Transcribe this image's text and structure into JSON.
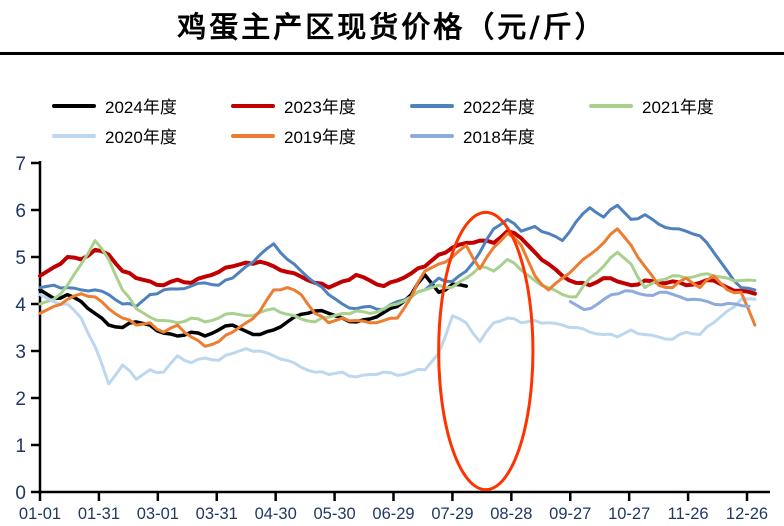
{
  "title": "鸡蛋主产区现货价格（元/斤）",
  "legend": [
    {
      "label": "2024年度",
      "color": "#000000"
    },
    {
      "label": "2023年度",
      "color": "#C00000"
    },
    {
      "label": "2022年度",
      "color": "#4E81BD"
    },
    {
      "label": "2021年度",
      "color": "#A9D18E"
    },
    {
      "label": "2020年度",
      "color": "#BDD7EE"
    },
    {
      "label": "2019年度",
      "color": "#ED7D31"
    },
    {
      "label": "2018年度",
      "color": "#8FAADC"
    }
  ],
  "axis_label_color": "#1F3864",
  "chart_data": {
    "type": "line",
    "title": "鸡蛋主产区现货价格（元/斤）",
    "xlabel": "",
    "ylabel": "",
    "ylim": [
      0,
      7
    ],
    "ytick_interval": 1,
    "grid": false,
    "legend_position": "top",
    "y_ticks": [
      {
        "value": 7,
        "label": "7"
      },
      {
        "value": 6,
        "label": "6"
      },
      {
        "value": 5,
        "label": "5"
      },
      {
        "value": 4,
        "label": "4"
      },
      {
        "value": 3,
        "label": "3"
      },
      {
        "value": 2,
        "label": "2"
      },
      {
        "value": 1,
        "label": "1"
      },
      {
        "value": 0,
        "label": "0"
      }
    ],
    "x_ticks": [
      {
        "day": 0,
        "label": "01-01"
      },
      {
        "day": 30,
        "label": "01-31"
      },
      {
        "day": 60,
        "label": "03-01"
      },
      {
        "day": 90,
        "label": "03-31"
      },
      {
        "day": 120,
        "label": "04-30"
      },
      {
        "day": 150,
        "label": "05-30"
      },
      {
        "day": 180,
        "label": "06-29"
      },
      {
        "day": 210,
        "label": "07-29"
      },
      {
        "day": 240,
        "label": "08-28"
      },
      {
        "day": 270,
        "label": "09-27"
      },
      {
        "day": 300,
        "label": "10-27"
      },
      {
        "day": 330,
        "label": "11-26"
      },
      {
        "day": 360,
        "label": "12-26"
      }
    ],
    "series": [
      {
        "name": "2024年度",
        "color": "#000000",
        "start_day": 0,
        "step_days": 7,
        "values": [
          4.3,
          4.12,
          4.2,
          4.05,
          3.8,
          3.55,
          3.5,
          3.62,
          3.55,
          3.38,
          3.32,
          3.4,
          3.32,
          3.45,
          3.55,
          3.42,
          3.35,
          3.45,
          3.62,
          3.78,
          3.85,
          3.8,
          3.7,
          3.62,
          3.68,
          3.82,
          3.95,
          4.2,
          4.62,
          4.25,
          4.42,
          4.38
        ]
      },
      {
        "name": "2023年度",
        "color": "#C00000",
        "start_day": 0,
        "step_days": 7,
        "values": [
          4.6,
          4.78,
          5.0,
          4.95,
          5.15,
          5.05,
          4.7,
          4.55,
          4.48,
          4.4,
          4.52,
          4.45,
          4.58,
          4.68,
          4.8,
          4.88,
          4.9,
          4.8,
          4.68,
          4.58,
          4.45,
          4.35,
          4.48,
          4.62,
          4.5,
          4.38,
          4.5,
          4.65,
          4.8,
          5.05,
          5.2,
          5.3,
          5.35,
          5.3,
          5.55,
          5.4,
          5.1,
          4.85,
          4.6,
          4.45,
          4.4,
          4.55,
          4.48,
          4.4,
          4.5,
          4.45,
          4.48,
          4.4,
          4.45,
          4.5,
          4.35,
          4.28,
          4.22
        ]
      },
      {
        "name": "2022年度",
        "color": "#4E81BD",
        "start_day": 0,
        "step_days": 7,
        "values": [
          4.35,
          4.4,
          4.35,
          4.3,
          4.3,
          4.2,
          4.0,
          3.95,
          4.2,
          4.3,
          4.32,
          4.38,
          4.45,
          4.4,
          4.55,
          4.8,
          5.05,
          5.28,
          4.95,
          4.7,
          4.45,
          4.2,
          4.0,
          3.9,
          3.95,
          3.88,
          4.05,
          4.15,
          4.3,
          4.55,
          4.48,
          4.7,
          5.1,
          5.6,
          5.8,
          5.55,
          5.65,
          5.5,
          5.35,
          5.75,
          6.05,
          5.85,
          6.1,
          5.8,
          5.9,
          5.7,
          5.6,
          5.55,
          5.45,
          5.1,
          4.7,
          4.35,
          4.3
        ]
      },
      {
        "name": "2021年度",
        "color": "#A9D18E",
        "start_day": 0,
        "step_days": 7,
        "values": [
          4.0,
          4.1,
          4.4,
          4.85,
          5.35,
          4.95,
          4.3,
          3.9,
          3.72,
          3.65,
          3.6,
          3.7,
          3.62,
          3.7,
          3.8,
          3.75,
          3.82,
          3.9,
          3.78,
          3.68,
          3.62,
          3.72,
          3.8,
          3.85,
          3.8,
          3.9,
          4.0,
          4.15,
          4.3,
          4.4,
          4.36,
          4.55,
          4.8,
          4.7,
          4.95,
          4.72,
          4.5,
          4.35,
          4.2,
          4.15,
          4.55,
          4.8,
          5.1,
          4.85,
          4.35,
          4.5,
          4.6,
          4.55,
          4.62,
          4.6,
          4.55,
          4.5,
          4.5
        ]
      },
      {
        "name": "2020年度",
        "color": "#BDD7EE",
        "start_day": 0,
        "step_days": 7,
        "values": [
          4.2,
          4.05,
          4.0,
          3.7,
          3.1,
          2.3,
          2.7,
          2.4,
          2.6,
          2.55,
          2.9,
          2.75,
          2.85,
          2.8,
          2.95,
          3.05,
          3.0,
          2.9,
          2.8,
          2.65,
          2.55,
          2.5,
          2.55,
          2.45,
          2.5,
          2.55,
          2.48,
          2.55,
          2.6,
          2.95,
          3.75,
          3.6,
          3.2,
          3.6,
          3.7,
          3.6,
          3.65,
          3.6,
          3.55,
          3.5,
          3.4,
          3.35,
          3.3,
          3.45,
          3.35,
          3.3,
          3.25,
          3.4,
          3.35,
          3.6,
          3.85,
          4.1,
          4.1
        ]
      },
      {
        "name": "2019年度",
        "color": "#ED7D31",
        "start_day": 0,
        "step_days": 7,
        "values": [
          3.8,
          3.95,
          4.1,
          4.22,
          4.15,
          3.9,
          3.7,
          3.55,
          3.6,
          3.4,
          3.55,
          3.3,
          3.1,
          3.2,
          3.4,
          3.6,
          3.85,
          4.3,
          4.35,
          4.2,
          3.8,
          3.6,
          3.7,
          3.65,
          3.6,
          3.65,
          3.7,
          4.15,
          4.7,
          4.85,
          5.0,
          5.25,
          4.75,
          5.2,
          5.5,
          5.25,
          4.6,
          4.3,
          4.55,
          4.8,
          5.05,
          5.3,
          5.6,
          5.25,
          4.8,
          4.4,
          4.35,
          4.55,
          4.35,
          4.6,
          4.3,
          4.25,
          3.55
        ]
      },
      {
        "name": "2018年度",
        "color": "#8FAADC",
        "start_day": 270,
        "step_days": 7,
        "values": [
          4.05,
          3.88,
          4.0,
          4.2,
          4.28,
          4.22,
          4.18,
          4.25,
          4.15,
          4.1,
          4.05,
          3.98,
          4.0,
          3.95
        ]
      }
    ],
    "annotation": {
      "shape": "ellipse",
      "color": "#FF3300",
      "center_day": 227,
      "center_value": 3.0,
      "radius_days": 24,
      "radius_values": 2.95
    }
  }
}
